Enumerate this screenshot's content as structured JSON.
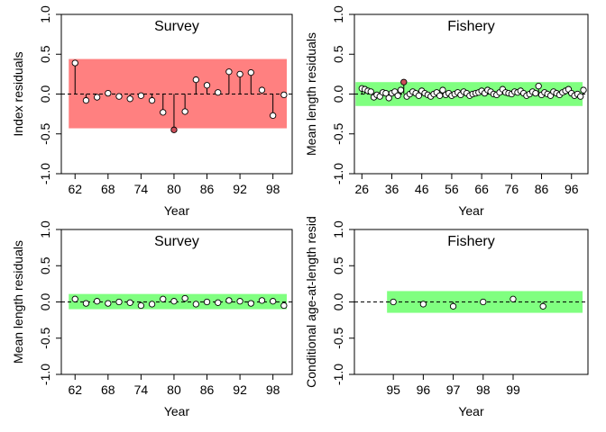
{
  "colors": {
    "red_band": "#FF8080",
    "green_band": "#80FF80",
    "bad_point": "#CD4F5A",
    "point_fill": "#FFFFFF",
    "stroke": "#000000"
  },
  "chart_data": [
    {
      "id": "survey-index",
      "type": "scatter",
      "style": "residual-sticks",
      "title": "Survey",
      "xlabel": "Year",
      "ylabel": "Index residuals",
      "xlim": [
        59.5,
        101.5
      ],
      "ylim": [
        -1.0,
        1.0
      ],
      "xticks": [
        62,
        68,
        74,
        80,
        86,
        92,
        98
      ],
      "yticks": [
        -1.0,
        -0.5,
        0.0,
        0.5,
        1.0
      ],
      "ytick_labels": [
        "-1.0",
        "-0.5",
        "0.0",
        "0.5",
        "1.0"
      ],
      "band": {
        "color": "red",
        "from": -0.43,
        "to": 0.44
      },
      "refline": 0,
      "x": [
        62,
        64,
        66,
        68,
        70,
        72,
        74,
        76,
        78,
        80,
        82,
        84,
        86,
        88,
        90,
        92,
        94,
        96,
        98,
        100
      ],
      "y": [
        0.39,
        -0.08,
        -0.04,
        0.01,
        -0.03,
        -0.06,
        -0.02,
        -0.08,
        -0.23,
        -0.45,
        -0.22,
        0.18,
        0.11,
        0.02,
        0.28,
        0.25,
        0.27,
        0.05,
        -0.27,
        -0.01
      ],
      "highlight_x": [
        80
      ]
    },
    {
      "id": "fishery-length",
      "type": "scatter",
      "style": "residual-sticks",
      "title": "Fishery",
      "xlabel": "Year",
      "ylabel": "Mean length residuals",
      "xlim": [
        23.5,
        101.5
      ],
      "ylim": [
        -1.0,
        1.0
      ],
      "xticks": [
        26,
        36,
        46,
        56,
        66,
        76,
        86,
        96
      ],
      "yticks": [
        -1.0,
        -0.5,
        0.0,
        0.5,
        1.0
      ],
      "ytick_labels": [
        "-1.0",
        "-0.5",
        "0.0",
        "0.5",
        "1.0"
      ],
      "band": {
        "color": "green",
        "from": -0.15,
        "to": 0.15
      },
      "refline": 0,
      "x": [
        26,
        27,
        28,
        29,
        30,
        31,
        32,
        33,
        34,
        35,
        36,
        37,
        38,
        39,
        40,
        41,
        42,
        43,
        44,
        45,
        46,
        47,
        48,
        49,
        50,
        51,
        52,
        53,
        54,
        55,
        56,
        57,
        58,
        59,
        60,
        61,
        62,
        63,
        64,
        65,
        66,
        67,
        68,
        69,
        70,
        71,
        72,
        73,
        74,
        75,
        76,
        77,
        78,
        79,
        80,
        81,
        82,
        83,
        84,
        85,
        86,
        87,
        88,
        89,
        90,
        91,
        92,
        93,
        94,
        95,
        96,
        97,
        98,
        99,
        100
      ],
      "y": [
        0.07,
        0.06,
        0.04,
        0.03,
        -0.04,
        -0.01,
        -0.03,
        0.02,
        0.01,
        -0.05,
        0.01,
        0.03,
        -0.02,
        0.05,
        0.15,
        -0.03,
        0.0,
        0.03,
        0.01,
        -0.02,
        0.04,
        0.01,
        -0.01,
        -0.03,
        0.0,
        0.02,
        -0.02,
        0.05,
        -0.01,
        0.01,
        -0.02,
        0.0,
        0.02,
        -0.01,
        0.03,
        0.01,
        -0.02,
        0.0,
        0.01,
        0.02,
        0.04,
        0.01,
        0.05,
        0.03,
        0.0,
        -0.01,
        0.02,
        0.06,
        0.02,
        0.01,
        0.0,
        0.03,
        0.02,
        0.04,
        0.01,
        -0.02,
        0.0,
        0.03,
        0.01,
        0.1,
        -0.01,
        0.02,
        0.0,
        -0.02,
        0.03,
        0.01,
        -0.01,
        0.02,
        0.04,
        0.06,
        0.01,
        -0.02,
        0.0,
        -0.03,
        0.05
      ],
      "highlight_x": [
        40
      ]
    },
    {
      "id": "survey-length",
      "type": "scatter",
      "style": "residual-sticks",
      "title": "Survey",
      "xlabel": "Year",
      "ylabel": "Mean length residuals",
      "xlim": [
        59.5,
        101.5
      ],
      "ylim": [
        -1.0,
        1.0
      ],
      "xticks": [
        62,
        68,
        74,
        80,
        86,
        92,
        98
      ],
      "yticks": [
        -1.0,
        -0.5,
        0.0,
        0.5,
        1.0
      ],
      "ytick_labels": [
        "-1.0",
        "-0.5",
        "0.0",
        "0.5",
        "1.0"
      ],
      "band": {
        "color": "green",
        "from": -0.1,
        "to": 0.11
      },
      "refline": 0,
      "x": [
        62,
        64,
        66,
        68,
        70,
        72,
        74,
        76,
        78,
        80,
        82,
        84,
        86,
        88,
        90,
        92,
        94,
        96,
        98,
        100
      ],
      "y": [
        0.04,
        -0.02,
        0.01,
        -0.02,
        0.0,
        -0.01,
        -0.05,
        -0.03,
        0.04,
        0.01,
        0.05,
        -0.03,
        0.0,
        -0.01,
        0.02,
        0.01,
        -0.02,
        0.02,
        0.01,
        -0.05
      ],
      "highlight_x": []
    },
    {
      "id": "fishery-age",
      "type": "scatter",
      "style": "residual-sticks",
      "title": "Fishery",
      "xlabel": "Year",
      "ylabel": "Conditional age-at-length resid",
      "xlim": [
        93.7,
        101.5
      ],
      "ylim": [
        -1.0,
        1.0
      ],
      "xticks": [
        95,
        96,
        97,
        98,
        99
      ],
      "yticks": [
        -1.0,
        -0.5,
        0.0,
        0.5,
        1.0
      ],
      "ytick_labels": [
        "-1.0",
        "-0.5",
        "0.0",
        "0.5",
        "1.0"
      ],
      "band": {
        "color": "green",
        "from": -0.15,
        "to": 0.15
      },
      "refline": 0,
      "x": [
        95,
        96,
        97,
        98,
        99,
        100
      ],
      "y": [
        0.0,
        -0.03,
        -0.06,
        0.0,
        0.04,
        -0.06
      ],
      "highlight_x": []
    }
  ]
}
